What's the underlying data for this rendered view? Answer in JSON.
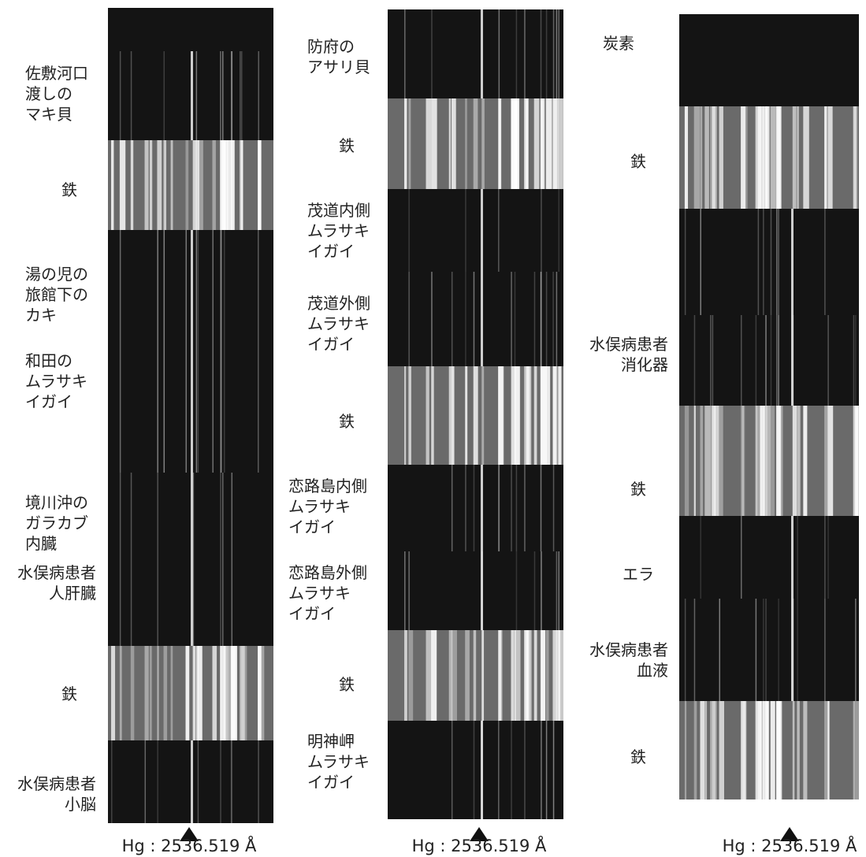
{
  "panels": [
    {
      "labels": [
        "佐敷河口\n渡しの\nマキ貝",
        "鉄",
        "湯の児の\n旅館下の\nカキ",
        "和田の\nムラサキ\nイガイ",
        "境川沖の\nガラカブ\n内臓",
        "水俣病患者\n人肝臓",
        "鉄",
        "水俣病患者\n小脳"
      ],
      "caption": "Hg : 2536.519 Å"
    },
    {
      "labels": [
        "防府の\nアサリ貝",
        "鉄",
        "茂道内側\nムラサキ\nイガイ",
        "茂道外側\nムラサキ\nイガイ",
        "鉄",
        "恋路島内側\nムラサキ\nイガイ",
        "恋路島外側\nムラサキ\nイガイ",
        "鉄",
        "明神岬\nムラサキ\nイガイ"
      ],
      "caption": "Hg : 2536.519 Å"
    },
    {
      "labels": [
        "炭素",
        "鉄",
        "水俣病患者\n消化器",
        "鉄",
        "エラ",
        "水俣病患者\n血液",
        "鉄"
      ],
      "caption": "Hg : 2536.519 Å"
    }
  ]
}
